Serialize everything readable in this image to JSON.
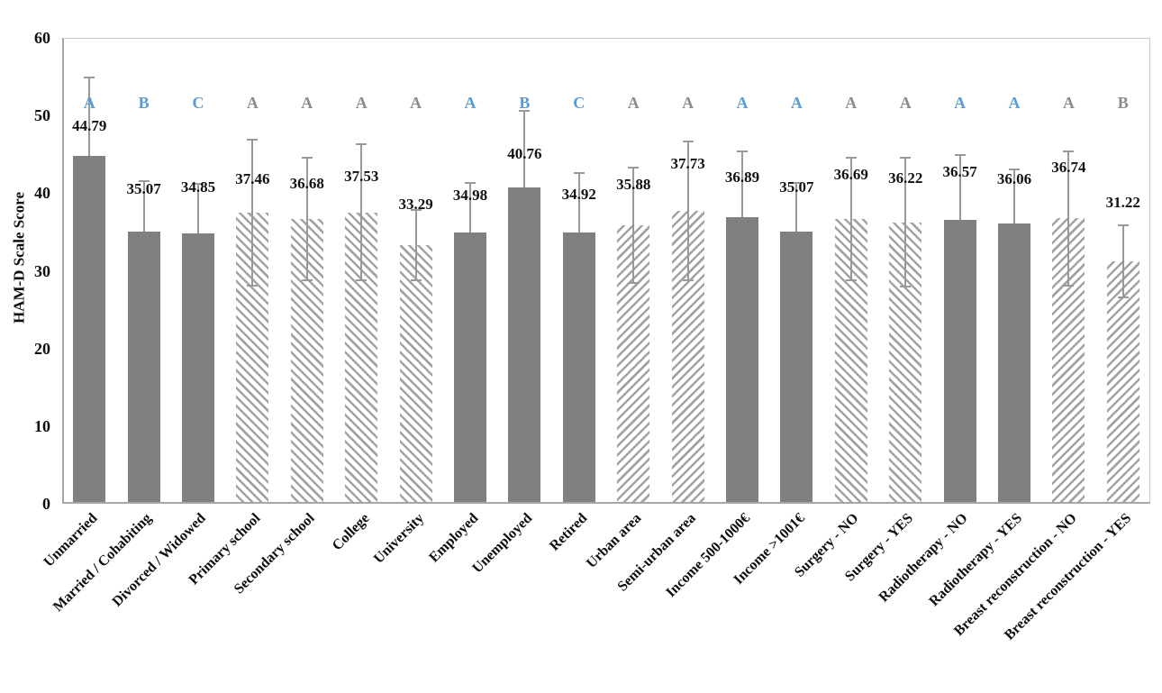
{
  "chart_data": {
    "type": "bar",
    "title": "",
    "xlabel": "",
    "ylabel": "HAM-D Scale Score",
    "ylim": [
      0,
      60
    ],
    "yticks": [
      0,
      10,
      20,
      30,
      40,
      50,
      60
    ],
    "grid": false,
    "legend": "none",
    "x_tick_rotation": 45,
    "colors": {
      "solid_bar": "#808080",
      "hatch_line": "#a3a3a3",
      "whisker": "#999999",
      "letter_blue": "#5B9BD5",
      "letter_gray": "#8c8c8c",
      "value_text": "#111111"
    },
    "categories": [
      "Unmarried",
      "Married / Cohabiting",
      "Divorced / Widowed",
      "Primary school",
      "Secondary school",
      "College",
      "University",
      "Employed",
      "Unemployed",
      "Retired",
      "Urban area",
      "Semi-urban area",
      "Income 500-1000€",
      "Income >1001€",
      "Surgery - NO",
      "Surgery - YES",
      "Radiotherapy - NO",
      "Radiotherapy - YES",
      "Breast reconstruction - NO",
      "Breast reconstruction - YES"
    ],
    "values": [
      44.79,
      35.07,
      34.85,
      37.46,
      36.68,
      37.53,
      33.29,
      34.98,
      40.76,
      34.92,
      35.88,
      37.73,
      36.89,
      35.07,
      36.69,
      36.22,
      36.57,
      36.06,
      36.74,
      31.22
    ],
    "errors": [
      10.1,
      6.5,
      6.4,
      9.4,
      7.9,
      8.8,
      4.5,
      6.3,
      9.8,
      7.7,
      7.4,
      8.9,
      8.5,
      6.2,
      7.9,
      8.3,
      8.3,
      7.0,
      8.6,
      4.6
    ],
    "letters": [
      "A",
      "B",
      "C",
      "A",
      "A",
      "A",
      "A",
      "A",
      "B",
      "C",
      "A",
      "A",
      "A",
      "A",
      "A",
      "A",
      "A",
      "A",
      "A",
      "B"
    ],
    "letter_styles": [
      "blue",
      "blue",
      "blue",
      "gray",
      "gray",
      "gray",
      "gray",
      "blue",
      "blue",
      "blue",
      "gray",
      "gray",
      "blue",
      "blue",
      "gray",
      "gray",
      "blue",
      "blue",
      "gray",
      "gray"
    ],
    "fills": [
      "solid",
      "solid",
      "solid",
      "hback",
      "hback",
      "hback",
      "hback",
      "solid",
      "solid",
      "solid",
      "hfwd",
      "hfwd",
      "solid",
      "solid",
      "hback",
      "hback",
      "solid",
      "solid",
      "hfwd",
      "hfwd"
    ],
    "label_y_positions": [
      48.7,
      40.6,
      40.9,
      41.9,
      41.3,
      42.3,
      38.6,
      39.8,
      45.1,
      39.9,
      41.2,
      43.9,
      42.1,
      40.9,
      42.5,
      42.0,
      42.8,
      41.9,
      43.4,
      38.9
    ],
    "letter_row_y_px": 114
  }
}
